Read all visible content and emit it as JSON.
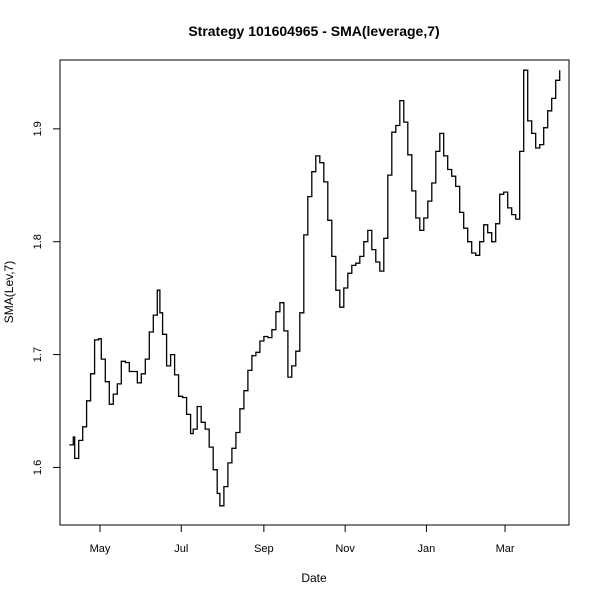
{
  "chart_data": {
    "type": "line",
    "title": "Strategy 101604965 - SMA(leverage,7)",
    "xlabel": "Date",
    "ylabel": "SMA(Lev,7)",
    "xlim": [
      "2021-04-01",
      "2022-04-18"
    ],
    "ylim": [
      1.549,
      1.961
    ],
    "x_ticks": [
      {
        "date": "2021-05-01",
        "label": "May"
      },
      {
        "date": "2021-07-01",
        "label": "Jul"
      },
      {
        "date": "2021-09-01",
        "label": "Sep"
      },
      {
        "date": "2021-11-01",
        "label": "Nov"
      },
      {
        "date": "2022-01-01",
        "label": "Jan"
      },
      {
        "date": "2022-03-01",
        "label": "Mar"
      }
    ],
    "y_ticks": [
      {
        "value": 1.6,
        "label": "1.6"
      },
      {
        "value": 1.7,
        "label": "1.7"
      },
      {
        "value": 1.8,
        "label": "1.8"
      },
      {
        "value": 1.9,
        "label": "1.9"
      }
    ],
    "grid": false,
    "line_color": "#000000",
    "series": [
      {
        "x": [
          "2021-04-08",
          "2021-04-11",
          "2021-04-12",
          "2021-04-15",
          "2021-04-18",
          "2021-04-21",
          "2021-04-24",
          "2021-04-27",
          "2021-04-30",
          "2021-05-02",
          "2021-05-05",
          "2021-05-08",
          "2021-05-11",
          "2021-05-14",
          "2021-05-17",
          "2021-05-20",
          "2021-05-23",
          "2021-05-26",
          "2021-05-29",
          "2021-06-01",
          "2021-06-04",
          "2021-06-07",
          "2021-06-10",
          "2021-06-13",
          "2021-06-15",
          "2021-06-17",
          "2021-06-20",
          "2021-06-23",
          "2021-06-26",
          "2021-06-29",
          "2021-07-02",
          "2021-07-05",
          "2021-07-08",
          "2021-07-10",
          "2021-07-13",
          "2021-07-16",
          "2021-07-19",
          "2021-07-22",
          "2021-07-25",
          "2021-07-28",
          "2021-07-30",
          "2021-08-02",
          "2021-08-05",
          "2021-08-08",
          "2021-08-11",
          "2021-08-14",
          "2021-08-17",
          "2021-08-20",
          "2021-08-23",
          "2021-08-26",
          "2021-08-29",
          "2021-09-01",
          "2021-09-04",
          "2021-09-07",
          "2021-09-10",
          "2021-09-13",
          "2021-09-16",
          "2021-09-19",
          "2021-09-22",
          "2021-09-25",
          "2021-09-28",
          "2021-10-01",
          "2021-10-04",
          "2021-10-07",
          "2021-10-10",
          "2021-10-13",
          "2021-10-16",
          "2021-10-19",
          "2021-10-22",
          "2021-10-25",
          "2021-10-28",
          "2021-10-31",
          "2021-11-03",
          "2021-11-06",
          "2021-11-09",
          "2021-11-12",
          "2021-11-15",
          "2021-11-18",
          "2021-11-21",
          "2021-11-24",
          "2021-11-27",
          "2021-11-30",
          "2021-12-03",
          "2021-12-06",
          "2021-12-09",
          "2021-12-12",
          "2021-12-15",
          "2021-12-18",
          "2021-12-21",
          "2021-12-24",
          "2021-12-27",
          "2021-12-30",
          "2022-01-02",
          "2022-01-05",
          "2022-01-08",
          "2022-01-11",
          "2022-01-14",
          "2022-01-17",
          "2022-01-20",
          "2022-01-23",
          "2022-01-26",
          "2022-01-29",
          "2022-02-01",
          "2022-02-04",
          "2022-02-07",
          "2022-02-10",
          "2022-02-13",
          "2022-02-16",
          "2022-02-19",
          "2022-02-22",
          "2022-02-25",
          "2022-02-28",
          "2022-03-03",
          "2022-03-06",
          "2022-03-09",
          "2022-03-12",
          "2022-03-15",
          "2022-03-18",
          "2022-03-21",
          "2022-03-24",
          "2022-03-27",
          "2022-03-30",
          "2022-04-02",
          "2022-04-05",
          "2022-04-08",
          "2022-04-11"
        ],
        "values": [
          1.62,
          1.627,
          1.608,
          1.624,
          1.636,
          1.659,
          1.683,
          1.713,
          1.714,
          1.696,
          1.676,
          1.656,
          1.665,
          1.674,
          1.694,
          1.693,
          1.685,
          1.685,
          1.675,
          1.683,
          1.696,
          1.72,
          1.735,
          1.757,
          1.737,
          1.718,
          1.69,
          1.7,
          1.682,
          1.663,
          1.662,
          1.647,
          1.63,
          1.634,
          1.654,
          1.64,
          1.634,
          1.618,
          1.598,
          1.577,
          1.566,
          1.583,
          1.604,
          1.617,
          1.631,
          1.652,
          1.668,
          1.686,
          1.699,
          1.702,
          1.712,
          1.716,
          1.715,
          1.722,
          1.738,
          1.746,
          1.721,
          1.68,
          1.69,
          1.703,
          1.737,
          1.806,
          1.84,
          1.862,
          1.876,
          1.87,
          1.853,
          1.819,
          1.787,
          1.757,
          1.742,
          1.759,
          1.772,
          1.779,
          1.781,
          1.787,
          1.8,
          1.81,
          1.793,
          1.782,
          1.774,
          1.803,
          1.859,
          1.897,
          1.903,
          1.925,
          1.906,
          1.877,
          1.845,
          1.821,
          1.81,
          1.821,
          1.836,
          1.852,
          1.88,
          1.896,
          1.876,
          1.864,
          1.858,
          1.849,
          1.826,
          1.812,
          1.8,
          1.79,
          1.788,
          1.8,
          1.815,
          1.808,
          1.8,
          1.816,
          1.842,
          1.844,
          1.83,
          1.824,
          1.82,
          1.88,
          1.952,
          1.907,
          1.896,
          1.883,
          1.886,
          1.901,
          1.916,
          1.927,
          1.943,
          1.952
        ]
      }
    ]
  }
}
